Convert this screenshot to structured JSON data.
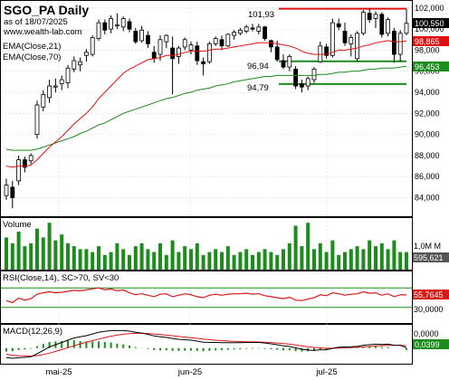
{
  "header": {
    "symbol_title": "SGO_PA Daily",
    "asof": "as of 18/07/2025",
    "website": "www.wealth-lab.com",
    "legend": [
      "EMA(Close,21)",
      "EMA(Close,70)"
    ]
  },
  "colors": {
    "up_candle": "#ffffff",
    "down_candle": "#000000",
    "ema21": "#e01010",
    "ema70": "#1a8a1a",
    "volume_bar": "#1c8c1c",
    "rsi_line": "#d81818",
    "rsi_band": "#1c8c1c",
    "macd_line": "#000000",
    "signal_line": "#d81818",
    "hist_bar": "#1c8c1c",
    "resistance_line": "#e01010",
    "support_line": "#1c8c1c",
    "last_price_badge": "#000000",
    "ema21_badge": "#e01010",
    "ema70_badge": "#1c8c1c",
    "volume_badge": "#555555"
  },
  "levels": {
    "resistance_label": "101,93",
    "support1_label": "96,94",
    "support2_label": "94,79"
  },
  "price_axis": {
    "ticks": [
      "102,000",
      "100,000",
      "98,000",
      "96,000",
      "94,000",
      "92,000",
      "90,000",
      "88,000",
      "86,000",
      "84,000"
    ]
  },
  "badges": {
    "last_price": "100,550",
    "ema21": "98,865",
    "ema70": "96,453",
    "volume_tick": "1,0M M",
    "volume_last": "595,621",
    "rsi_last": "55,7645",
    "rsi_tick": "30,0000",
    "macd_tick": "0,0000",
    "macd_last": "0,0399"
  },
  "panels": {
    "volume_title": "Volume",
    "rsi_title": "RSI(Close,14), SC>70, SV<30",
    "macd_title": "MACD(12,26,9)"
  },
  "x_axis": {
    "labels": [
      "mai-25",
      "jun-25",
      "jul-25"
    ]
  },
  "chart_data": {
    "type": "candlestick",
    "title": "SGO_PA Daily",
    "ylim": [
      82.5,
      102.5
    ],
    "resistance": 101.93,
    "support_levels": [
      96.94,
      94.79
    ],
    "candles": [
      {
        "o": 84.2,
        "h": 85.8,
        "l": 83.8,
        "c": 85.2
      },
      {
        "o": 85.0,
        "h": 85.6,
        "l": 83.0,
        "c": 84.0
      },
      {
        "o": 85.6,
        "h": 88.0,
        "l": 85.2,
        "c": 87.6
      },
      {
        "o": 87.6,
        "h": 87.9,
        "l": 86.4,
        "c": 86.9
      },
      {
        "o": 87.5,
        "h": 88.2,
        "l": 87.2,
        "c": 88.0
      },
      {
        "o": 90.0,
        "h": 93.2,
        "l": 89.6,
        "c": 92.8
      },
      {
        "o": 92.6,
        "h": 94.2,
        "l": 92.2,
        "c": 93.8
      },
      {
        "o": 93.5,
        "h": 95.2,
        "l": 93.0,
        "c": 94.6
      },
      {
        "o": 94.5,
        "h": 95.3,
        "l": 94.0,
        "c": 94.6
      },
      {
        "o": 94.8,
        "h": 95.6,
        "l": 94.2,
        "c": 95.2
      },
      {
        "o": 94.9,
        "h": 96.6,
        "l": 94.4,
        "c": 96.3
      },
      {
        "o": 96.2,
        "h": 97.4,
        "l": 95.9,
        "c": 97.0
      },
      {
        "o": 96.6,
        "h": 97.3,
        "l": 96.0,
        "c": 96.9
      },
      {
        "o": 97.5,
        "h": 98.1,
        "l": 96.9,
        "c": 97.8
      },
      {
        "o": 97.6,
        "h": 99.4,
        "l": 97.4,
        "c": 99.2
      },
      {
        "o": 99.1,
        "h": 100.9,
        "l": 98.9,
        "c": 100.6
      },
      {
        "o": 100.6,
        "h": 100.9,
        "l": 99.5,
        "c": 99.9
      },
      {
        "o": 100.0,
        "h": 101.3,
        "l": 99.6,
        "c": 101.0
      },
      {
        "o": 100.3,
        "h": 101.5,
        "l": 100.0,
        "c": 100.4
      },
      {
        "o": 100.2,
        "h": 101.2,
        "l": 99.8,
        "c": 101.0
      },
      {
        "o": 100.7,
        "h": 101.0,
        "l": 99.7,
        "c": 100.0
      },
      {
        "o": 99.8,
        "h": 100.1,
        "l": 98.6,
        "c": 98.8
      },
      {
        "o": 98.9,
        "h": 100.3,
        "l": 98.7,
        "c": 99.9
      },
      {
        "o": 99.4,
        "h": 99.8,
        "l": 98.2,
        "c": 98.6
      },
      {
        "o": 97.8,
        "h": 98.4,
        "l": 96.8,
        "c": 97.2
      },
      {
        "o": 97.6,
        "h": 99.4,
        "l": 97.0,
        "c": 99.0
      },
      {
        "o": 98.8,
        "h": 99.5,
        "l": 98.2,
        "c": 99.4
      },
      {
        "o": 98.2,
        "h": 99.3,
        "l": 93.8,
        "c": 97.2
      },
      {
        "o": 97.4,
        "h": 98.4,
        "l": 96.7,
        "c": 98.2
      },
      {
        "o": 98.3,
        "h": 99.2,
        "l": 98.0,
        "c": 99.0
      },
      {
        "o": 98.0,
        "h": 98.8,
        "l": 97.6,
        "c": 98.5
      },
      {
        "o": 98.4,
        "h": 98.8,
        "l": 96.6,
        "c": 97.0
      },
      {
        "o": 96.9,
        "h": 97.3,
        "l": 95.6,
        "c": 96.7
      },
      {
        "o": 96.9,
        "h": 98.8,
        "l": 96.7,
        "c": 98.6
      },
      {
        "o": 98.6,
        "h": 99.3,
        "l": 98.4,
        "c": 99.1
      },
      {
        "o": 99.0,
        "h": 99.4,
        "l": 98.0,
        "c": 98.4
      },
      {
        "o": 98.4,
        "h": 99.6,
        "l": 98.3,
        "c": 99.5
      },
      {
        "o": 99.4,
        "h": 99.9,
        "l": 99.0,
        "c": 99.7
      },
      {
        "o": 99.6,
        "h": 100.1,
        "l": 99.4,
        "c": 99.9
      },
      {
        "o": 99.8,
        "h": 100.4,
        "l": 99.6,
        "c": 100.2
      },
      {
        "o": 100.1,
        "h": 100.5,
        "l": 99.8,
        "c": 100.0
      },
      {
        "o": 99.8,
        "h": 100.5,
        "l": 99.5,
        "c": 100.2
      },
      {
        "o": 100.2,
        "h": 100.3,
        "l": 98.9,
        "c": 99.1
      },
      {
        "o": 98.9,
        "h": 99.0,
        "l": 97.8,
        "c": 98.3
      },
      {
        "o": 98.3,
        "h": 98.9,
        "l": 96.9,
        "c": 97.1
      },
      {
        "o": 97.0,
        "h": 97.6,
        "l": 96.2,
        "c": 96.4
      },
      {
        "o": 96.4,
        "h": 97.6,
        "l": 96.0,
        "c": 97.4
      },
      {
        "o": 96.2,
        "h": 96.5,
        "l": 94.3,
        "c": 94.6
      },
      {
        "o": 94.8,
        "h": 95.2,
        "l": 94.0,
        "c": 94.5
      },
      {
        "o": 94.6,
        "h": 95.5,
        "l": 94.2,
        "c": 95.3
      },
      {
        "o": 95.2,
        "h": 96.4,
        "l": 94.9,
        "c": 96.2
      },
      {
        "o": 96.9,
        "h": 98.8,
        "l": 96.8,
        "c": 98.4
      },
      {
        "o": 98.3,
        "h": 98.6,
        "l": 97.2,
        "c": 97.5
      },
      {
        "o": 97.5,
        "h": 101.0,
        "l": 97.3,
        "c": 100.6
      },
      {
        "o": 100.5,
        "h": 101.0,
        "l": 99.9,
        "c": 100.2
      },
      {
        "o": 99.8,
        "h": 100.6,
        "l": 98.4,
        "c": 98.7
      },
      {
        "o": 98.6,
        "h": 99.5,
        "l": 97.4,
        "c": 99.2
      },
      {
        "o": 97.2,
        "h": 99.8,
        "l": 96.9,
        "c": 99.6
      },
      {
        "o": 99.6,
        "h": 101.8,
        "l": 99.4,
        "c": 101.6
      },
      {
        "o": 101.5,
        "h": 101.9,
        "l": 100.6,
        "c": 100.9
      },
      {
        "o": 101.0,
        "h": 101.7,
        "l": 100.1,
        "c": 101.4
      },
      {
        "o": 101.4,
        "h": 101.6,
        "l": 99.2,
        "c": 99.5
      },
      {
        "o": 99.6,
        "h": 101.1,
        "l": 99.3,
        "c": 100.9
      },
      {
        "o": 99.8,
        "h": 100.1,
        "l": 96.8,
        "c": 97.6
      },
      {
        "o": 97.6,
        "h": 99.9,
        "l": 96.9,
        "c": 99.6
      },
      {
        "o": 99.6,
        "h": 101.9,
        "l": 99.4,
        "c": 100.55
      }
    ],
    "ema21": [
      87.0,
      86.9,
      87.0,
      87.0,
      87.1,
      87.6,
      88.2,
      88.8,
      89.3,
      89.8,
      90.4,
      91.0,
      91.5,
      92.0,
      92.6,
      93.4,
      94.0,
      94.6,
      95.2,
      95.8,
      96.2,
      96.5,
      96.8,
      97.1,
      97.2,
      97.3,
      97.5,
      97.5,
      97.6,
      97.8,
      97.9,
      97.9,
      97.9,
      98.0,
      98.1,
      98.1,
      98.2,
      98.3,
      98.4,
      98.5,
      98.6,
      98.7,
      98.7,
      98.7,
      98.6,
      98.5,
      98.4,
      98.2,
      97.9,
      97.7,
      97.6,
      97.6,
      97.6,
      97.8,
      98.0,
      98.0,
      98.1,
      98.2,
      98.4,
      98.5,
      98.7,
      98.8,
      98.9,
      98.8,
      98.8,
      98.865
    ],
    "ema70": [
      88.6,
      88.5,
      88.5,
      88.5,
      88.5,
      88.6,
      88.8,
      89.0,
      89.2,
      89.4,
      89.6,
      89.8,
      90.1,
      90.3,
      90.6,
      90.9,
      91.1,
      91.4,
      91.7,
      92.0,
      92.2,
      92.4,
      92.6,
      92.8,
      93.0,
      93.2,
      93.4,
      93.5,
      93.7,
      93.9,
      94.0,
      94.2,
      94.3,
      94.4,
      94.6,
      94.7,
      94.8,
      95.0,
      95.1,
      95.2,
      95.3,
      95.4,
      95.5,
      95.5,
      95.6,
      95.6,
      95.6,
      95.6,
      95.6,
      95.6,
      95.6,
      95.7,
      95.7,
      95.8,
      95.9,
      95.9,
      96.0,
      96.0,
      96.1,
      96.2,
      96.2,
      96.3,
      96.3,
      96.3,
      96.4,
      96.453
    ],
    "volume": [
      1.1,
      0.9,
      1.3,
      0.8,
      0.9,
      1.4,
      1.1,
      1.6,
      1.0,
      1.2,
      0.9,
      0.8,
      0.7,
      0.7,
      0.6,
      0.8,
      0.5,
      0.6,
      0.9,
      0.7,
      0.5,
      0.8,
      0.9,
      0.7,
      0.6,
      0.9,
      0.5,
      1.0,
      0.6,
      0.8,
      0.7,
      0.9,
      0.5,
      0.6,
      0.7,
      0.6,
      0.8,
      0.5,
      0.6,
      0.7,
      0.5,
      0.6,
      0.7,
      0.6,
      0.5,
      0.7,
      0.9,
      1.5,
      0.8,
      1.6,
      0.7,
      0.9,
      0.6,
      1.0,
      0.5,
      0.6,
      0.7,
      0.8,
      0.7,
      1.0,
      0.8,
      0.9,
      0.7,
      1.0,
      0.6,
      0.6
    ],
    "volume_ylim": [
      0,
      1.7
    ],
    "rsi": [
      44,
      40,
      49,
      45,
      48,
      57,
      60,
      62,
      60,
      61,
      63,
      65,
      64,
      66,
      68,
      70,
      66,
      68,
      64,
      66,
      60,
      56,
      58,
      55,
      52,
      57,
      58,
      52,
      55,
      58,
      56,
      52,
      50,
      55,
      57,
      55,
      57,
      58,
      58,
      59,
      57,
      58,
      54,
      52,
      50,
      48,
      51,
      45,
      44,
      47,
      50,
      56,
      54,
      60,
      58,
      55,
      57,
      58,
      62,
      59,
      60,
      55,
      58,
      52,
      56,
      55.76
    ],
    "rsi_ylim": [
      0,
      100
    ],
    "rsi_bands": [
      30,
      70
    ],
    "macd": [
      -0.85,
      -0.9,
      -0.85,
      -0.82,
      -0.76,
      -0.5,
      -0.2,
      0.1,
      0.3,
      0.5,
      0.7,
      0.9,
      1.0,
      1.1,
      1.25,
      1.4,
      1.48,
      1.55,
      1.55,
      1.55,
      1.5,
      1.4,
      1.33,
      1.22,
      1.08,
      1.0,
      0.95,
      0.85,
      0.78,
      0.74,
      0.7,
      0.62,
      0.52,
      0.5,
      0.5,
      0.48,
      0.48,
      0.48,
      0.48,
      0.5,
      0.5,
      0.5,
      0.45,
      0.38,
      0.3,
      0.2,
      0.15,
      0.02,
      -0.1,
      -0.17,
      -0.2,
      -0.15,
      -0.15,
      -0.02,
      0.08,
      0.1,
      0.12,
      0.15,
      0.25,
      0.3,
      0.35,
      0.32,
      0.35,
      0.25,
      0.25,
      0.04
    ],
    "signal": [
      -0.55,
      -0.62,
      -0.67,
      -0.7,
      -0.71,
      -0.67,
      -0.57,
      -0.44,
      -0.29,
      -0.13,
      0.04,
      0.21,
      0.37,
      0.51,
      0.66,
      0.8,
      0.93,
      1.05,
      1.15,
      1.23,
      1.28,
      1.31,
      1.31,
      1.29,
      1.25,
      1.2,
      1.15,
      1.09,
      1.03,
      0.97,
      0.92,
      0.86,
      0.8,
      0.74,
      0.7,
      0.66,
      0.63,
      0.6,
      0.58,
      0.56,
      0.55,
      0.54,
      0.52,
      0.49,
      0.45,
      0.4,
      0.35,
      0.28,
      0.2,
      0.12,
      0.06,
      0.02,
      -0.01,
      -0.01,
      0.01,
      0.03,
      0.05,
      0.07,
      0.11,
      0.15,
      0.19,
      0.22,
      0.25,
      0.25,
      0.25,
      0.21
    ],
    "macd_ylim": [
      -1.3,
      1.9
    ]
  }
}
